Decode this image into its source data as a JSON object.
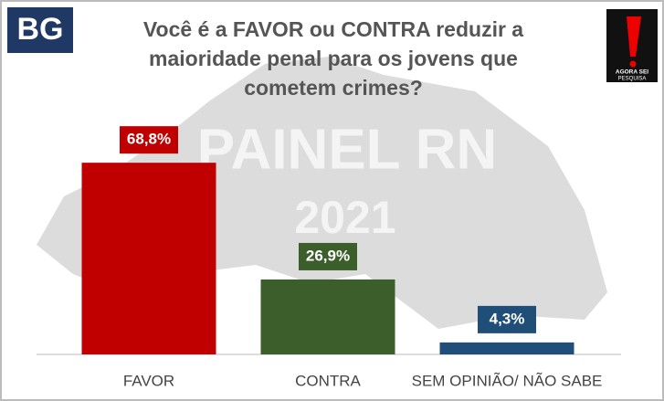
{
  "logo": "BG",
  "brand": {
    "name": "AGORA SEI",
    "tagline": "PESQUISA"
  },
  "watermark": [
    "PAINEL RN",
    "2021"
  ],
  "chart_data": {
    "type": "bar",
    "title": "Você é a FAVOR ou CONTRA reduzir a maioridade  penal para os jovens que cometem crimes?",
    "categories": [
      "FAVOR",
      "CONTRA",
      "SEM OPINIÃO/ NÃO SABE"
    ],
    "values": [
      68.8,
      26.9,
      4.3
    ],
    "value_labels": [
      "68,8%",
      "26,9%",
      "4,3%"
    ],
    "colors": [
      "#c00000",
      "#3b5e2b",
      "#1f4e79"
    ]
  }
}
